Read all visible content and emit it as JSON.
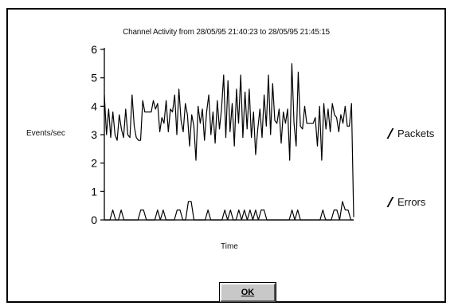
{
  "window": {
    "ok_label": "OK"
  },
  "chart_data": {
    "type": "line",
    "title": "Channel Activity from 28/05/95 21:40:23 to 28/05/95 21:45:15",
    "xlabel": "Time",
    "ylabel": "Events/sec",
    "ylim": [
      0,
      6
    ],
    "y_ticks": [
      "0",
      "1",
      "2",
      "3",
      "4",
      "5",
      "6"
    ],
    "legend_position": "right",
    "series": [
      {
        "name": "Packets",
        "color": "#000000",
        "values": [
          4.4,
          3.0,
          3.9,
          2.9,
          3.8,
          3.0,
          2.8,
          3.7,
          3.2,
          2.9,
          3.9,
          3.0,
          2.9,
          4.4,
          3.3,
          2.9,
          2.8,
          2.8,
          4.2,
          3.8,
          3.8,
          3.8,
          3.8,
          4.2,
          3.9,
          4.1,
          3.1,
          3.6,
          3.4,
          4.2,
          3.1,
          3.9,
          3.8,
          4.4,
          3.0,
          4.6,
          3.5,
          3.1,
          4.1,
          3.7,
          2.6,
          3.7,
          3.3,
          2.1,
          4.0,
          3.4,
          3.9,
          2.8,
          3.8,
          4.4,
          3.0,
          3.8,
          2.7,
          4.2,
          3.2,
          3.9,
          5.1,
          2.9,
          4.9,
          3.1,
          4.1,
          2.6,
          4.6,
          3.4,
          5.1,
          2.9,
          4.5,
          3.2,
          4.6,
          2.9,
          3.8,
          2.3,
          3.2,
          3.9,
          2.9,
          4.4,
          3.3,
          5.1,
          3.0,
          4.8,
          3.5,
          3.4,
          3.9,
          2.7,
          3.8,
          3.4,
          3.9,
          2.1,
          5.5,
          3.4,
          2.6,
          5.2,
          3.3,
          3.2,
          4.0,
          3.4,
          3.4,
          3.4,
          3.4,
          3.6,
          2.6,
          4.0,
          2.1,
          4.1,
          3.2,
          3.9,
          3.1,
          4.1,
          3.7,
          3.6,
          3.1,
          3.7,
          3.4,
          4.0,
          3.3,
          3.3,
          4.1,
          0.1
        ]
      },
      {
        "name": "Errors",
        "color": "#000000",
        "values": [
          0,
          0,
          0,
          0.35,
          0,
          0,
          0.35,
          0,
          0,
          0,
          0,
          0,
          0,
          0.35,
          0.35,
          0,
          0,
          0,
          0,
          0.35,
          0,
          0.35,
          0,
          0,
          0,
          0,
          0.35,
          0.35,
          0,
          0,
          0.65,
          0.65,
          0,
          0,
          0,
          0,
          0,
          0.35,
          0,
          0,
          0,
          0,
          0,
          0.35,
          0,
          0.35,
          0,
          0,
          0.35,
          0,
          0.35,
          0,
          0.35,
          0,
          0.35,
          0,
          0.35,
          0.35,
          0,
          0,
          0,
          0,
          0,
          0,
          0,
          0,
          0,
          0.35,
          0,
          0.35,
          0,
          0,
          0,
          0,
          0,
          0,
          0,
          0,
          0.35,
          0,
          0,
          0,
          0.35,
          0.35,
          0,
          0.65,
          0.35,
          0.35,
          0,
          0
        ]
      }
    ]
  }
}
